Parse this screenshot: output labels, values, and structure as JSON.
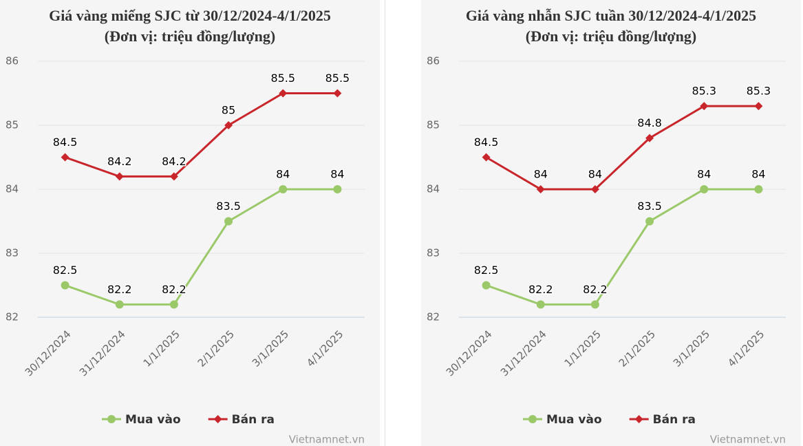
{
  "chart_data": [
    {
      "type": "line",
      "title": "Giá vàng miếng SJC từ 30/12/2024-4/1/2025 (Đơn vị: triệu đồng/lượng)",
      "categories": [
        "30/12/2024",
        "31/12/2024",
        "1/1/2025",
        "2/1/2025",
        "3/1/2025",
        "4/1/2025"
      ],
      "series": [
        {
          "name": "Mua vào",
          "color": "#9bc96a",
          "marker": "circle",
          "values": [
            82.5,
            82.2,
            82.2,
            83.5,
            84,
            84
          ]
        },
        {
          "name": "Bán ra",
          "color": "#c9262c",
          "marker": "diamond",
          "values": [
            84.5,
            84.2,
            84.2,
            85,
            85.5,
            85.5
          ]
        }
      ],
      "ylim": [
        82,
        86
      ],
      "yticks": [
        82,
        83,
        84,
        85,
        86
      ],
      "grid": true,
      "legend": "bottom",
      "source": "Vietnamnet.vn"
    },
    {
      "type": "line",
      "title": "Giá vàng nhẫn SJC tuần 30/12/2024-4/1/2025 (Đơn vị: triệu đồng/lượng)",
      "categories": [
        "30/12/2024",
        "31/12/2024",
        "1/1/2025",
        "2/1/2025",
        "3/1/2025",
        "4/1/2025"
      ],
      "series": [
        {
          "name": "Mua vào",
          "color": "#9bc96a",
          "marker": "circle",
          "values": [
            82.5,
            82.2,
            82.2,
            83.5,
            84,
            84
          ]
        },
        {
          "name": "Bán ra",
          "color": "#c9262c",
          "marker": "diamond",
          "values": [
            84.5,
            84,
            84,
            84.8,
            85.3,
            85.3
          ]
        }
      ],
      "ylim": [
        82,
        86
      ],
      "yticks": [
        82,
        83,
        84,
        85,
        86
      ],
      "grid": true,
      "legend": "bottom",
      "source": "Vietnamnet.vn"
    }
  ]
}
